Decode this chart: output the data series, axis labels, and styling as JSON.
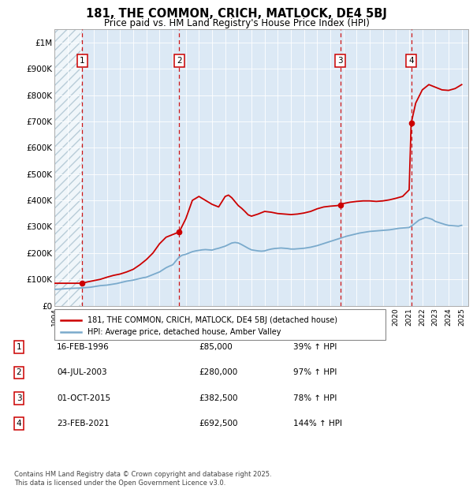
{
  "title": "181, THE COMMON, CRICH, MATLOCK, DE4 5BJ",
  "subtitle": "Price paid vs. HM Land Registry's House Price Index (HPI)",
  "xlim_start": 1994.0,
  "xlim_end": 2025.5,
  "ylim_min": 0,
  "ylim_max": 1050000,
  "yticks": [
    0,
    100000,
    200000,
    300000,
    400000,
    500000,
    600000,
    700000,
    800000,
    900000,
    1000000
  ],
  "ytick_labels": [
    "£0",
    "£100K",
    "£200K",
    "£300K",
    "£400K",
    "£500K",
    "£600K",
    "£700K",
    "£800K",
    "£900K",
    "£1M"
  ],
  "bg_color": "#dce9f5",
  "hatch_color": "#b8ccd8",
  "grid_color": "#ffffff",
  "sale_dates": [
    1996.12,
    2003.5,
    2015.75,
    2021.15
  ],
  "sale_prices": [
    85000,
    280000,
    382500,
    692500
  ],
  "sale_labels": [
    "1",
    "2",
    "3",
    "4"
  ],
  "sale_pct": [
    "39% ↑ HPI",
    "97% ↑ HPI",
    "78% ↑ HPI",
    "144% ↑ HPI"
  ],
  "sale_date_strings": [
    "16-FEB-1996",
    "04-JUL-2003",
    "01-OCT-2015",
    "23-FEB-2021"
  ],
  "sale_price_strings": [
    "£85,000",
    "£280,000",
    "£382,500",
    "£692,500"
  ],
  "red_line_color": "#cc0000",
  "blue_line_color": "#7aaacc",
  "legend_label_red": "181, THE COMMON, CRICH, MATLOCK, DE4 5BJ (detached house)",
  "legend_label_blue": "HPI: Average price, detached house, Amber Valley",
  "footer": "Contains HM Land Registry data © Crown copyright and database right 2025.\nThis data is licensed under the Open Government Licence v3.0.",
  "hpi_x": [
    1994.0,
    1994.25,
    1994.5,
    1994.75,
    1995.0,
    1995.25,
    1995.5,
    1995.75,
    1996.0,
    1996.25,
    1996.5,
    1996.75,
    1997.0,
    1997.25,
    1997.5,
    1997.75,
    1998.0,
    1998.25,
    1998.5,
    1998.75,
    1999.0,
    1999.25,
    1999.5,
    1999.75,
    2000.0,
    2000.25,
    2000.5,
    2000.75,
    2001.0,
    2001.25,
    2001.5,
    2001.75,
    2002.0,
    2002.25,
    2002.5,
    2002.75,
    2003.0,
    2003.25,
    2003.5,
    2003.75,
    2004.0,
    2004.25,
    2004.5,
    2004.75,
    2005.0,
    2005.25,
    2005.5,
    2005.75,
    2006.0,
    2006.25,
    2006.5,
    2006.75,
    2007.0,
    2007.25,
    2007.5,
    2007.75,
    2008.0,
    2008.25,
    2008.5,
    2008.75,
    2009.0,
    2009.25,
    2009.5,
    2009.75,
    2010.0,
    2010.25,
    2010.5,
    2010.75,
    2011.0,
    2011.25,
    2011.5,
    2011.75,
    2012.0,
    2012.25,
    2012.5,
    2012.75,
    2013.0,
    2013.25,
    2013.5,
    2013.75,
    2014.0,
    2014.25,
    2014.5,
    2014.75,
    2015.0,
    2015.25,
    2015.5,
    2015.75,
    2016.0,
    2016.25,
    2016.5,
    2016.75,
    2017.0,
    2017.25,
    2017.5,
    2017.75,
    2018.0,
    2018.25,
    2018.5,
    2018.75,
    2019.0,
    2019.25,
    2019.5,
    2019.75,
    2020.0,
    2020.25,
    2020.5,
    2020.75,
    2021.0,
    2021.25,
    2021.5,
    2021.75,
    2022.0,
    2022.25,
    2022.5,
    2022.75,
    2023.0,
    2023.25,
    2023.5,
    2023.75,
    2024.0,
    2024.25,
    2024.5,
    2024.75,
    2025.0
  ],
  "hpi_y": [
    62000,
    62500,
    63000,
    64000,
    65000,
    65500,
    66000,
    66500,
    67000,
    68000,
    69000,
    70000,
    72000,
    74000,
    76000,
    77000,
    78000,
    80000,
    82000,
    84000,
    87000,
    90000,
    93000,
    95000,
    97000,
    100000,
    103000,
    106000,
    108000,
    113000,
    118000,
    123000,
    128000,
    136000,
    144000,
    150000,
    155000,
    170000,
    185000,
    192000,
    195000,
    200000,
    205000,
    208000,
    210000,
    212000,
    213000,
    212000,
    211000,
    215000,
    218000,
    222000,
    226000,
    232000,
    238000,
    240000,
    238000,
    232000,
    225000,
    218000,
    212000,
    210000,
    208000,
    207000,
    208000,
    212000,
    215000,
    217000,
    218000,
    219000,
    218000,
    217000,
    215000,
    215000,
    216000,
    217000,
    218000,
    220000,
    222000,
    225000,
    228000,
    232000,
    236000,
    240000,
    244000,
    248000,
    252000,
    256000,
    260000,
    264000,
    267000,
    270000,
    273000,
    276000,
    278000,
    280000,
    282000,
    283000,
    284000,
    285000,
    286000,
    287000,
    288000,
    290000,
    292000,
    294000,
    295000,
    296000,
    297000,
    305000,
    315000,
    325000,
    330000,
    335000,
    332000,
    328000,
    320000,
    316000,
    312000,
    308000,
    305000,
    304000,
    303000,
    302000,
    305000
  ],
  "red_x": [
    1994.0,
    1995.0,
    1996.0,
    1996.12,
    1996.5,
    1997.0,
    1997.5,
    1998.0,
    1998.5,
    1999.0,
    1999.5,
    2000.0,
    2000.5,
    2001.0,
    2001.5,
    2002.0,
    2002.5,
    2003.0,
    2003.5,
    2004.0,
    2004.5,
    2005.0,
    2005.5,
    2006.0,
    2006.5,
    2007.0,
    2007.25,
    2007.5,
    2007.75,
    2008.0,
    2008.25,
    2008.5,
    2008.75,
    2009.0,
    2009.5,
    2010.0,
    2010.5,
    2011.0,
    2011.5,
    2012.0,
    2012.5,
    2013.0,
    2013.5,
    2014.0,
    2014.5,
    2015.0,
    2015.5,
    2015.75,
    2016.0,
    2016.5,
    2017.0,
    2017.5,
    2018.0,
    2018.5,
    2019.0,
    2019.5,
    2020.0,
    2020.5,
    2021.0,
    2021.15,
    2021.5,
    2022.0,
    2022.5,
    2023.0,
    2023.5,
    2024.0,
    2024.5,
    2025.0
  ],
  "red_y": [
    85000,
    85000,
    85000,
    85000,
    90000,
    95000,
    100000,
    108000,
    115000,
    120000,
    128000,
    138000,
    155000,
    175000,
    200000,
    235000,
    260000,
    270000,
    280000,
    330000,
    400000,
    415000,
    400000,
    385000,
    375000,
    415000,
    420000,
    410000,
    395000,
    380000,
    370000,
    358000,
    345000,
    340000,
    348000,
    358000,
    355000,
    350000,
    348000,
    346000,
    348000,
    352000,
    358000,
    368000,
    375000,
    378000,
    380000,
    382500,
    388000,
    393000,
    396000,
    398000,
    398000,
    396000,
    398000,
    402000,
    408000,
    415000,
    440000,
    692500,
    770000,
    820000,
    840000,
    830000,
    820000,
    818000,
    825000,
    840000
  ]
}
